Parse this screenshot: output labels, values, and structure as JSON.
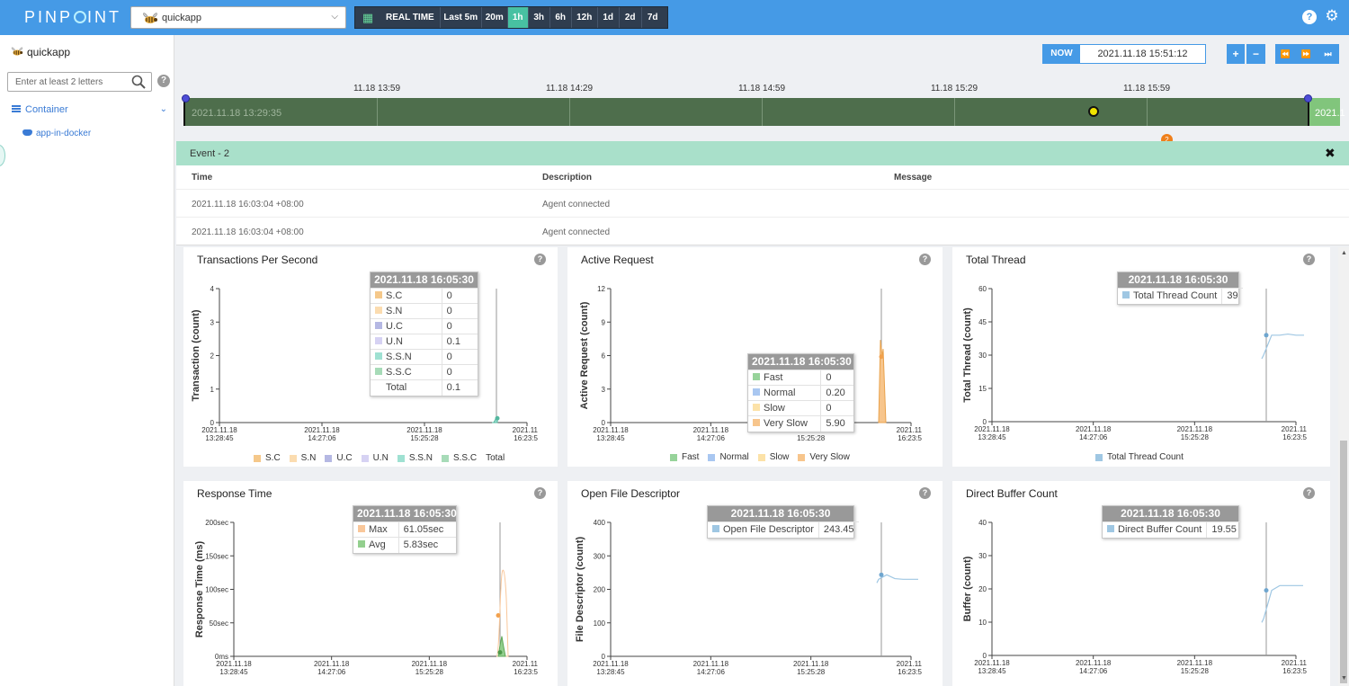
{
  "app": {
    "logo": "PINPOINT",
    "selected_app": "quickapp",
    "icons": {
      "bee": "bee-icon",
      "calendar": "calendar-icon",
      "help": "help-icon",
      "settings": "gear-icon"
    }
  },
  "timebar": {
    "realtime_label": "REAL TIME",
    "ranges": [
      "Last 5m",
      "20m",
      "1h",
      "3h",
      "6h",
      "12h",
      "1d",
      "2d",
      "7d"
    ],
    "active_range": "1h"
  },
  "sidebar": {
    "app_name": "quickapp",
    "search_placeholder": "Enter at least 2 letters",
    "group_label": "Container",
    "agent_label": "app-in-docker"
  },
  "controls": {
    "now_label": "NOW",
    "now_value": "2021.11.18 15:51:12",
    "zoom_in": "+",
    "zoom_out": "−",
    "prev": "⏪",
    "next": "⏩",
    "latest": "⏭"
  },
  "timeline": {
    "labels": [
      "11.18 13:59",
      "11.18 14:29",
      "11.18 14:59",
      "11.18 15:29",
      "11.18 15:59"
    ],
    "start_text": "2021.11.18 13:29:35",
    "end_text": "2021.1",
    "event_count": "2"
  },
  "event_panel": {
    "title": "Event - 2",
    "columns": [
      "Time",
      "Description",
      "Message"
    ],
    "rows": [
      {
        "time": "2021.11.18 16:03:04 +08:00",
        "description": "Agent connected",
        "message": ""
      },
      {
        "time": "2021.11.18 16:03:04 +08:00",
        "description": "Agent connected",
        "message": ""
      }
    ]
  },
  "colors": {
    "topbar": "#459ae6",
    "sc": "#f5c88a",
    "sn": "#fbdcb0",
    "uc": "#b5b8e3",
    "un": "#d6d2f3",
    "ssn": "#9fe1d2",
    "ssc": "#a7dbb8",
    "fast": "#97d39a",
    "normal": "#a9c7f1",
    "slow": "#fce2a8",
    "veryslow": "#f7c58c",
    "thread": "#9fc7e3",
    "max": "#f9c79a",
    "avg": "#93cf8e"
  },
  "chart_data": [
    {
      "id": "tps",
      "type": "area",
      "title": "Transactions Per Second",
      "ylabel": "Transaction (count)",
      "ylim": [
        0,
        4
      ],
      "yticks": [
        "0",
        "1",
        "2",
        "3",
        "4"
      ],
      "xticks": [
        [
          "2021.11.18",
          "13:28:45"
        ],
        [
          "2021.11.18",
          "14:27:06"
        ],
        [
          "2021.11.18",
          "15:25:28"
        ],
        [
          "2021.11",
          "16:23:5"
        ]
      ],
      "legend": [
        "S.C",
        "S.N",
        "U.C",
        "U.N",
        "S.S.N",
        "S.S.C",
        "Total"
      ],
      "series": [
        {
          "name": "U.N",
          "values": [
            0,
            0,
            0.1,
            0.1
          ]
        }
      ],
      "tooltip": {
        "time": "2021.11.18 16:05:30",
        "rows": [
          [
            "S.C",
            "0"
          ],
          [
            "S.N",
            "0"
          ],
          [
            "U.C",
            "0"
          ],
          [
            "U.N",
            "0.1"
          ],
          [
            "S.S.N",
            "0"
          ],
          [
            "S.S.C",
            "0"
          ],
          [
            "Total",
            "0.1"
          ]
        ]
      }
    },
    {
      "id": "active",
      "type": "area",
      "title": "Active Request",
      "ylabel": "Active Request (count)",
      "ylim": [
        0,
        12
      ],
      "yticks": [
        "0",
        "3",
        "6",
        "9",
        "12"
      ],
      "xticks": [
        [
          "2021.11.18",
          "13:28:45"
        ],
        [
          "2021.11.18",
          "14:27:06"
        ],
        [
          "2021.11.18",
          "15:25:28"
        ],
        [
          "2021.11",
          "16:23:5"
        ]
      ],
      "legend": [
        "Fast",
        "Normal",
        "Slow",
        "Very Slow"
      ],
      "series": [
        {
          "name": "Very Slow",
          "values": [
            0,
            7.4,
            5.9,
            0
          ]
        }
      ],
      "tooltip": {
        "time": "2021.11.18 16:05:30",
        "rows": [
          [
            "Fast",
            "0"
          ],
          [
            "Normal",
            "0.20"
          ],
          [
            "Slow",
            "0"
          ],
          [
            "Very Slow",
            "5.90"
          ]
        ]
      }
    },
    {
      "id": "thread",
      "type": "line",
      "title": "Total Thread",
      "ylabel": "Total Thread (count)",
      "ylim": [
        0,
        60
      ],
      "yticks": [
        "0",
        "15",
        "30",
        "45",
        "60"
      ],
      "xticks": [
        [
          "2021.11.18",
          "13:28:45"
        ],
        [
          "2021.11.18",
          "14:27:06"
        ],
        [
          "2021.11.18",
          "15:25:28"
        ],
        [
          "2021.11",
          "16:23:5"
        ]
      ],
      "legend": [
        "Total Thread Count"
      ],
      "series": [
        {
          "name": "Total Thread Count",
          "values": [
            30,
            39,
            39,
            39.5,
            39,
            39
          ]
        }
      ],
      "tooltip": {
        "time": "2021.11.18 16:05:30",
        "rows": [
          [
            "Total Thread Count",
            "39"
          ]
        ]
      }
    },
    {
      "id": "response",
      "type": "area",
      "title": "Response Time",
      "ylabel": "Response Time (ms)",
      "ylim": [
        0,
        200
      ],
      "yticks": [
        "0ms",
        "50sec",
        "100sec",
        "150sec",
        "200sec"
      ],
      "xticks": [
        [
          "2021.11.18",
          "13:28:45"
        ],
        [
          "2021.11.18",
          "14:27:06"
        ],
        [
          "2021.11.18",
          "15:25:28"
        ],
        [
          "2021.11",
          "16:23:5"
        ]
      ],
      "series": [
        {
          "name": "Max",
          "values": [
            0,
            61.05,
            140,
            0
          ]
        },
        {
          "name": "Avg",
          "values": [
            0,
            5.83,
            30,
            0
          ]
        }
      ],
      "tooltip": {
        "time": "2021.11.18 16:05:30",
        "rows": [
          [
            "Max",
            "61.05sec"
          ],
          [
            "Avg",
            "5.83sec"
          ]
        ]
      }
    },
    {
      "id": "fd",
      "type": "line",
      "title": "Open File Descriptor",
      "ylabel": "File Descriptor (count)",
      "ylim": [
        0,
        400
      ],
      "yticks": [
        "0",
        "100",
        "200",
        "300",
        "400"
      ],
      "xticks": [
        [
          "2021.11.18",
          "13:28:45"
        ],
        [
          "2021.11.18",
          "14:27:06"
        ],
        [
          "2021.11.18",
          "15:25:28"
        ],
        [
          "2021.11",
          "16:23:5"
        ]
      ],
      "series": [
        {
          "name": "Open File Descriptor",
          "values": [
            230,
            243.45,
            232,
            230,
            230
          ]
        }
      ],
      "tooltip": {
        "time": "2021.11.18 16:05:30",
        "rows": [
          [
            "Open File Descriptor",
            "243.45"
          ]
        ]
      }
    },
    {
      "id": "buffer",
      "type": "line",
      "title": "Direct Buffer Count",
      "ylabel": "Buffer (count)",
      "ylim": [
        0,
        40
      ],
      "yticks": [
        "0",
        "10",
        "20",
        "30",
        "40"
      ],
      "xticks": [
        [
          "2021.11.18",
          "13:28:45"
        ],
        [
          "2021.11.18",
          "14:27:06"
        ],
        [
          "2021.11.18",
          "15:25:28"
        ],
        [
          "2021.11",
          "16:23:5"
        ]
      ],
      "series": [
        {
          "name": "Direct Buffer Count",
          "values": [
            11,
            19.55,
            21,
            21,
            21
          ]
        }
      ],
      "tooltip": {
        "time": "2021.11.18 16:05:30",
        "rows": [
          [
            "Direct Buffer Count",
            "19.55"
          ]
        ]
      }
    }
  ]
}
